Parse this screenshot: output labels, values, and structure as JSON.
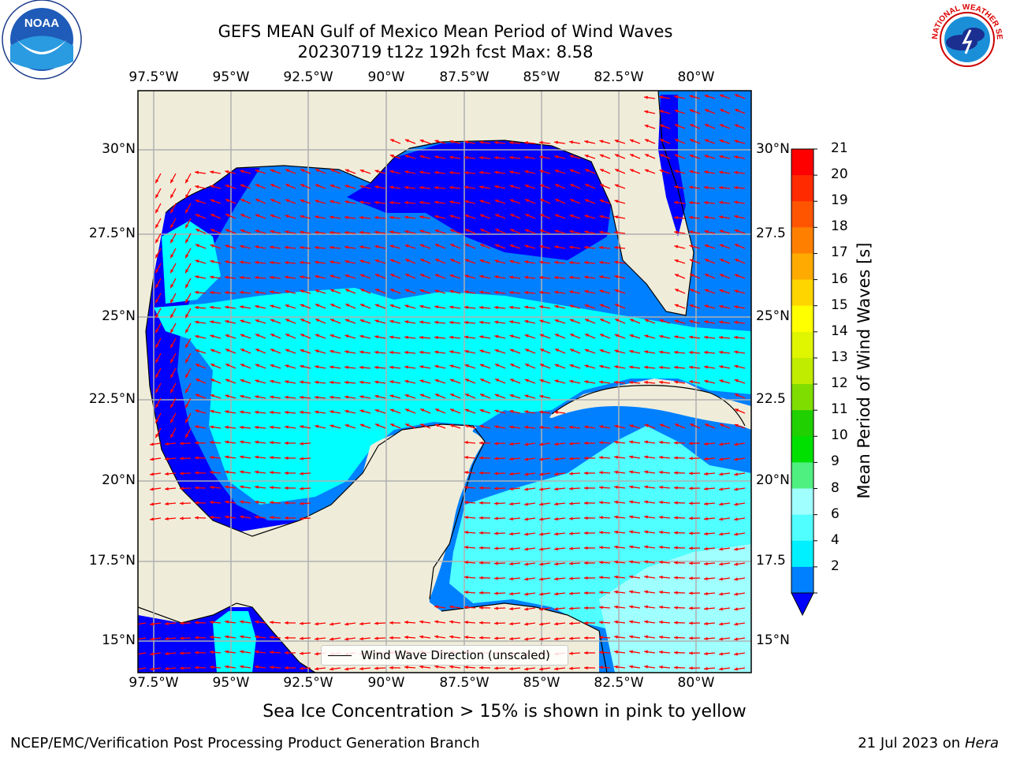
{
  "title": {
    "line1": "GEFS MEAN Gulf of Mexico Mean Period of Wind Waves",
    "line2": "20230719 t12z 192h fcst   Max: 8.58"
  },
  "axes": {
    "lon_labels": [
      "97.5°W",
      "95°W",
      "92.5°W",
      "90°W",
      "87.5°W",
      "85°W",
      "82.5°W",
      "80°W"
    ],
    "lat_labels": [
      "30°N",
      "27.5°N",
      "25°N",
      "22.5°N",
      "20°N",
      "17.5°N",
      "15°N"
    ],
    "lat_labels_right": [
      "30°N",
      "27.5",
      "25°N",
      "22.5",
      "20°N",
      "17.5",
      "15°N"
    ]
  },
  "colorbar": {
    "title": "Mean Period of Wind Waves [s]",
    "ticks": [
      "21",
      "20",
      "19",
      "18",
      "17",
      "16",
      "15",
      "14",
      "13",
      "12",
      "11",
      "10",
      "9",
      "8",
      "6",
      "4",
      "2"
    ],
    "colors": [
      "#ff0000",
      "#ff2a00",
      "#ff5500",
      "#ff8000",
      "#ffaa00",
      "#ffd500",
      "#ffff00",
      "#e0f500",
      "#c0ec00",
      "#80dd00",
      "#20d000",
      "#00e000",
      "#50f080",
      "#a0ffff",
      "#50ffff",
      "#00f0ff",
      "#0080ff"
    ],
    "extend_color": "#0000ff"
  },
  "map_colors": {
    "land": "#efedda",
    "ocean_2_4": "#0080ff",
    "ocean_lt2": "#0000ff",
    "ocean_4_6": "#00ffff",
    "ocean_6_8": "#50ffff",
    "ocean_8_9": "#a0ffff",
    "arrow": "#ff0000",
    "grid": "#b0b0b0"
  },
  "legend": {
    "label": "Wind Wave Direction (unscaled)"
  },
  "ice_note": "Sea Ice Concentration > 15% is shown in pink to yellow",
  "footer": {
    "left": "NCEP/EMC/Verification Post Processing Product Generation Branch",
    "right_date": "21 Jul 2023 on ",
    "right_machine": "Hera"
  },
  "logos": {
    "noaa": "NOAA",
    "nws": "NATIONAL WEATHER SERVICE"
  }
}
